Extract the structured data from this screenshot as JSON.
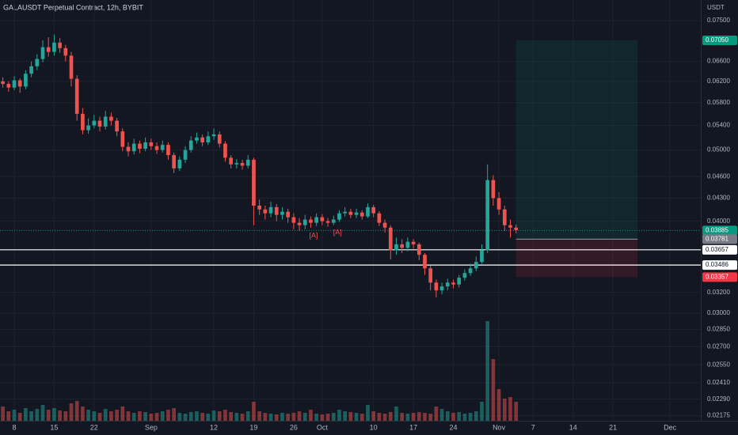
{
  "chart_data": {
    "type": "candlestick",
    "title": "GALAUSDT Perpetual Contract, 12h, BYBIT",
    "currency": "USDT",
    "log_scale": true,
    "grid": true,
    "up_color": "#26a69a",
    "down_color": "#ef5350",
    "xlim": [
      -26.5,
      96.4
    ],
    "xticks": [
      {
        "value": -24,
        "label": "8"
      },
      {
        "value": -17,
        "label": "15"
      },
      {
        "value": -10,
        "label": "22"
      },
      {
        "value": 0,
        "label": "Sep"
      },
      {
        "value": 11,
        "label": "12"
      },
      {
        "value": 18,
        "label": "19"
      },
      {
        "value": 25,
        "label": "26"
      },
      {
        "value": 30,
        "label": "Oct"
      },
      {
        "value": 39,
        "label": "10"
      },
      {
        "value": 46,
        "label": "17"
      },
      {
        "value": 53,
        "label": "24"
      },
      {
        "value": 61,
        "label": "Nov"
      },
      {
        "value": 67,
        "label": "7"
      },
      {
        "value": 74,
        "label": "14"
      },
      {
        "value": 81,
        "label": "21"
      },
      {
        "value": 91,
        "label": "Dec"
      }
    ],
    "ylim": [
      0.0214,
      0.08
    ],
    "yticks": [
      {
        "value": 0.075,
        "label": "0.07500"
      },
      {
        "value": 0.066,
        "label": "0.06600"
      },
      {
        "value": 0.062,
        "label": "0.06200"
      },
      {
        "value": 0.058,
        "label": "0.05800"
      },
      {
        "value": 0.054,
        "label": "0.05400"
      },
      {
        "value": 0.05,
        "label": "0.05000"
      },
      {
        "value": 0.046,
        "label": "0.04600"
      },
      {
        "value": 0.043,
        "label": "0.04300"
      },
      {
        "value": 0.04,
        "label": "0.04000"
      },
      {
        "value": 0.032,
        "label": "0.03200"
      },
      {
        "value": 0.03,
        "label": "0.03000"
      },
      {
        "value": 0.0285,
        "label": "0.02850"
      },
      {
        "value": 0.027,
        "label": "0.02700"
      },
      {
        "value": 0.0255,
        "label": "0.02550"
      },
      {
        "value": 0.0241,
        "label": "0.02410"
      },
      {
        "value": 0.0229,
        "label": "0.02290"
      },
      {
        "value": 0.02175,
        "label": "0.02175"
      }
    ],
    "x": [
      -26,
      -25,
      -24,
      -23,
      -22,
      -21,
      -20,
      -19,
      -18,
      -17,
      -16,
      -15,
      -14,
      -13,
      -12,
      -11,
      -10,
      -9,
      -8,
      -7,
      -6,
      -5,
      -4,
      -3,
      -2,
      -1,
      0,
      1,
      2,
      3,
      4,
      5,
      6,
      7,
      8,
      9,
      10,
      11,
      12,
      13,
      14,
      15,
      16,
      17,
      18,
      19,
      20,
      21,
      22,
      23,
      24,
      25,
      26,
      27,
      28,
      29,
      30,
      31,
      32,
      33,
      34,
      35,
      36,
      37,
      38,
      39,
      40,
      41,
      42,
      43,
      44,
      45,
      46,
      47,
      48,
      49,
      50,
      51,
      52,
      53,
      54,
      55,
      56,
      57,
      58,
      59,
      60,
      61,
      62,
      63,
      64
    ],
    "open": [
      0.062,
      0.0615,
      0.0608,
      0.0622,
      0.061,
      0.0635,
      0.065,
      0.0665,
      0.069,
      0.068,
      0.07,
      0.0688,
      0.0672,
      0.0625,
      0.056,
      0.0532,
      0.054,
      0.0548,
      0.0538,
      0.0555,
      0.0548,
      0.053,
      0.0505,
      0.0498,
      0.051,
      0.0502,
      0.0512,
      0.0506,
      0.05,
      0.0508,
      0.0492,
      0.0472,
      0.0485,
      0.05,
      0.0515,
      0.052,
      0.0512,
      0.0522,
      0.0525,
      0.051,
      0.0488,
      0.0478,
      0.048,
      0.0476,
      0.0485,
      0.042,
      0.0415,
      0.041,
      0.0418,
      0.0408,
      0.0412,
      0.0405,
      0.0398,
      0.0395,
      0.0402,
      0.0398,
      0.0405,
      0.04,
      0.0398,
      0.0402,
      0.041,
      0.0412,
      0.0408,
      0.0411,
      0.0406,
      0.0418,
      0.041,
      0.0398,
      0.0392,
      0.0365,
      0.0372,
      0.0368,
      0.0375,
      0.0372,
      0.036,
      0.0345,
      0.033,
      0.0322,
      0.0326,
      0.033,
      0.0328,
      0.0335,
      0.034,
      0.0345,
      0.0352,
      0.0365,
      0.0455,
      0.043,
      0.0415,
      0.0395,
      0.0392
    ],
    "high": [
      0.0628,
      0.062,
      0.063,
      0.0626,
      0.0642,
      0.066,
      0.0675,
      0.0705,
      0.0712,
      0.0718,
      0.071,
      0.0695,
      0.068,
      0.0632,
      0.057,
      0.0552,
      0.0558,
      0.0555,
      0.0565,
      0.0562,
      0.0553,
      0.0535,
      0.0512,
      0.0518,
      0.0515,
      0.052,
      0.0518,
      0.0512,
      0.0515,
      0.0512,
      0.0496,
      0.049,
      0.0506,
      0.0522,
      0.0528,
      0.0525,
      0.053,
      0.0535,
      0.053,
      0.0514,
      0.0492,
      0.0486,
      0.0485,
      0.0492,
      0.0488,
      0.0428,
      0.042,
      0.0425,
      0.0422,
      0.0418,
      0.0416,
      0.041,
      0.0404,
      0.0408,
      0.0406,
      0.041,
      0.0409,
      0.0404,
      0.0407,
      0.0414,
      0.0418,
      0.0416,
      0.0416,
      0.0414,
      0.0423,
      0.0421,
      0.0413,
      0.0402,
      0.0395,
      0.038,
      0.0378,
      0.038,
      0.0378,
      0.0374,
      0.0362,
      0.0348,
      0.0333,
      0.033,
      0.0334,
      0.0333,
      0.0338,
      0.0344,
      0.035,
      0.0358,
      0.0372,
      0.0478,
      0.0462,
      0.0438,
      0.042,
      0.0402,
      0.0396
    ],
    "low": [
      0.0608,
      0.06,
      0.0603,
      0.0598,
      0.0605,
      0.0628,
      0.0642,
      0.0658,
      0.067,
      0.0672,
      0.0678,
      0.066,
      0.061,
      0.0548,
      0.0525,
      0.0526,
      0.0535,
      0.053,
      0.0533,
      0.054,
      0.0522,
      0.0498,
      0.049,
      0.0493,
      0.0495,
      0.0498,
      0.05,
      0.0494,
      0.0496,
      0.0485,
      0.0465,
      0.0468,
      0.048,
      0.0496,
      0.051,
      0.0506,
      0.0508,
      0.0516,
      0.0504,
      0.0482,
      0.0472,
      0.0472,
      0.047,
      0.0472,
      0.0395,
      0.0408,
      0.0402,
      0.0405,
      0.04,
      0.0402,
      0.0398,
      0.039,
      0.0388,
      0.039,
      0.0392,
      0.0394,
      0.0395,
      0.0393,
      0.0395,
      0.0399,
      0.0406,
      0.0404,
      0.0404,
      0.0402,
      0.0404,
      0.0405,
      0.0394,
      0.0386,
      0.0355,
      0.036,
      0.0362,
      0.0364,
      0.0367,
      0.0354,
      0.0338,
      0.0322,
      0.0315,
      0.0318,
      0.0322,
      0.0324,
      0.0325,
      0.0332,
      0.0337,
      0.0342,
      0.035,
      0.0362,
      0.042,
      0.0408,
      0.0388,
      0.038,
      0.0385
    ],
    "close": [
      0.0615,
      0.0608,
      0.0622,
      0.061,
      0.0635,
      0.065,
      0.0665,
      0.069,
      0.068,
      0.07,
      0.0688,
      0.0672,
      0.0625,
      0.056,
      0.0532,
      0.054,
      0.0548,
      0.0538,
      0.0555,
      0.0548,
      0.053,
      0.0505,
      0.0498,
      0.051,
      0.0502,
      0.0512,
      0.0506,
      0.05,
      0.0508,
      0.0492,
      0.0472,
      0.0485,
      0.05,
      0.0515,
      0.052,
      0.0512,
      0.0522,
      0.0525,
      0.051,
      0.0488,
      0.0478,
      0.048,
      0.0476,
      0.0485,
      0.042,
      0.0415,
      0.041,
      0.0418,
      0.0408,
      0.0412,
      0.0405,
      0.0398,
      0.0395,
      0.0402,
      0.0398,
      0.0405,
      0.04,
      0.0398,
      0.0402,
      0.041,
      0.0412,
      0.0408,
      0.0411,
      0.0406,
      0.0418,
      0.041,
      0.0398,
      0.0392,
      0.0365,
      0.0372,
      0.0368,
      0.0375,
      0.0372,
      0.036,
      0.0345,
      0.033,
      0.0322,
      0.0326,
      0.033,
      0.0328,
      0.0335,
      0.034,
      0.0345,
      0.0352,
      0.0365,
      0.0455,
      0.043,
      0.0415,
      0.0395,
      0.0392,
      0.0389
    ],
    "volume": [
      18,
      12,
      14,
      10,
      16,
      12,
      15,
      20,
      14,
      16,
      13,
      12,
      22,
      25,
      18,
      14,
      12,
      10,
      15,
      12,
      14,
      18,
      12,
      10,
      12,
      11,
      9,
      10,
      12,
      14,
      16,
      10,
      9,
      11,
      12,
      10,
      9,
      13,
      12,
      14,
      11,
      10,
      9,
      12,
      24,
      12,
      10,
      9,
      8,
      10,
      9,
      10,
      12,
      10,
      14,
      9,
      8,
      9,
      10,
      14,
      12,
      11,
      10,
      9,
      20,
      12,
      10,
      9,
      11,
      18,
      10,
      9,
      10,
      11,
      10,
      9,
      18,
      15,
      12,
      10,
      11,
      9,
      10,
      12,
      24,
      126,
      78,
      40,
      28,
      30,
      24
    ],
    "volume_ylim": [
      0,
      130
    ],
    "position": {
      "x_start": 64,
      "x_end": 85.3,
      "target": {
        "value": 0.0705,
        "label": "0.07050",
        "color": "#089981"
      },
      "entry": {
        "value": 0.03781,
        "label": "0.03781",
        "color": "#787b86"
      },
      "stop": {
        "value": 0.03357,
        "label": "0.03357",
        "color": "#f23645"
      }
    },
    "current_price": {
      "value": 0.03885,
      "label": "0.03885",
      "color": "#089981"
    },
    "hlines": [
      {
        "value": 0.03657,
        "label": "0.03657"
      },
      {
        "value": 0.03486,
        "label": "0.03486"
      }
    ],
    "annotations": [
      {
        "text": "[A]",
        "x": 28.5,
        "y": 0.0382
      },
      {
        "text": "[A]",
        "x": 32.7,
        "y": 0.0386
      }
    ]
  }
}
